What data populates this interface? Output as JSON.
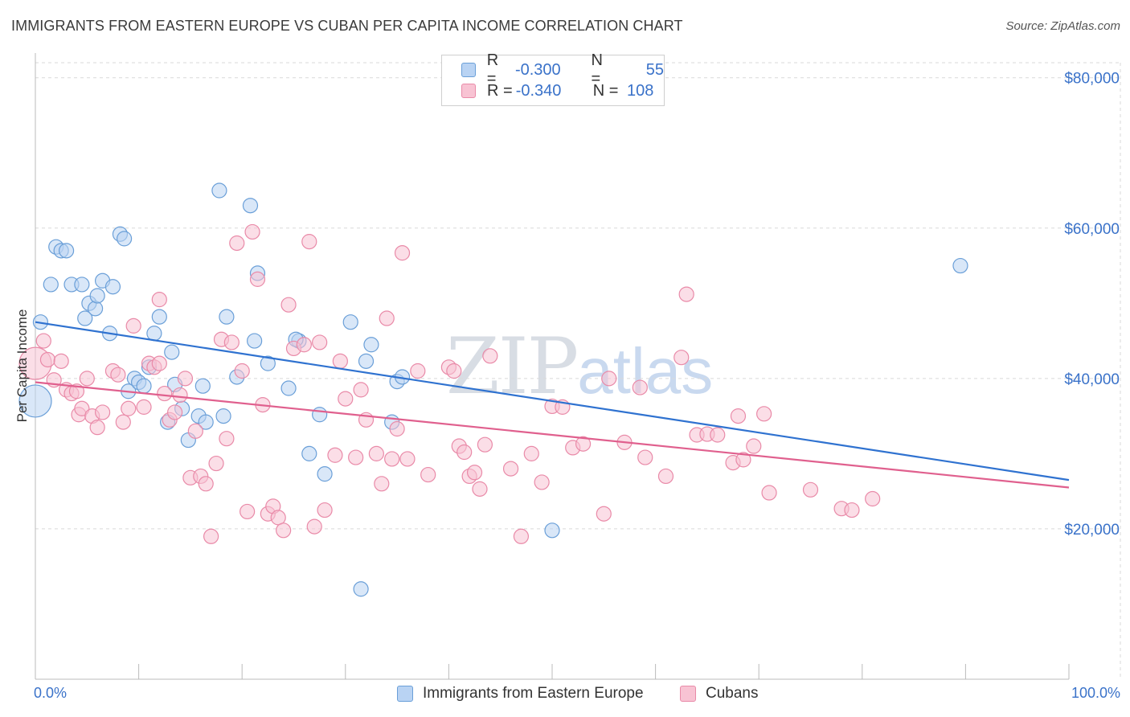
{
  "title": "IMMIGRANTS FROM EASTERN EUROPE VS CUBAN PER CAPITA INCOME CORRELATION CHART",
  "source": "Source: ZipAtlas.com",
  "watermark": {
    "zip": "ZIP",
    "atlas": "atlas"
  },
  "colors": {
    "blue_fill": "#b9d3f3",
    "blue_stroke": "#6a9fd8",
    "blue_line": "#2f72d0",
    "pink_fill": "#f8c3d3",
    "pink_stroke": "#e98aa8",
    "pink_line": "#e0608e",
    "accent_text": "#3a72c9",
    "grid": "#d9d9d9"
  },
  "legend_top": {
    "rows": [
      {
        "r_label": "R =",
        "r_value": "-0.300",
        "n_label": "N =",
        "n_value": "55"
      },
      {
        "r_label": "R =",
        "r_value": "-0.340",
        "n_label": "N =",
        "n_value": "108"
      }
    ]
  },
  "legend_bottom": [
    "Immigrants from Eastern Europe",
    "Cubans"
  ],
  "chart_data": {
    "type": "scatter",
    "title": "IMMIGRANTS FROM EASTERN EUROPE VS CUBAN PER CAPITA INCOME CORRELATION CHART",
    "xlabel": "",
    "ylabel": "Per Capita Income",
    "x_tick_labels": [
      "0.0%",
      "100.0%"
    ],
    "y_tick_labels": [
      "$20,000",
      "$40,000",
      "$60,000",
      "$80,000"
    ],
    "y_ticks": [
      20000,
      40000,
      60000,
      80000
    ],
    "xlim": [
      0,
      100
    ],
    "ylim": [
      0,
      82000
    ],
    "grid": true,
    "legend_position": "top-center",
    "series": [
      {
        "name": "Immigrants from Eastern Europe",
        "r": -0.3,
        "n": 55,
        "trend": {
          "x0": 0,
          "y0": 47500,
          "x1": 100,
          "y1": 26500
        },
        "points": [
          [
            0,
            37000
          ],
          [
            0.5,
            47500
          ],
          [
            1.5,
            52500
          ],
          [
            2,
            57500
          ],
          [
            2.5,
            57000
          ],
          [
            3,
            57000
          ],
          [
            3.5,
            52500
          ],
          [
            4.5,
            52500
          ],
          [
            4.8,
            48000
          ],
          [
            5.2,
            50000
          ],
          [
            5.8,
            49300
          ],
          [
            6,
            51000
          ],
          [
            6.5,
            53000
          ],
          [
            7.2,
            46000
          ],
          [
            7.5,
            52200
          ],
          [
            8.2,
            59200
          ],
          [
            8.6,
            58600
          ],
          [
            9,
            38300
          ],
          [
            9.6,
            40000
          ],
          [
            10,
            39500
          ],
          [
            10.5,
            39000
          ],
          [
            11,
            41500
          ],
          [
            11.5,
            46000
          ],
          [
            12,
            48200
          ],
          [
            12.8,
            34200
          ],
          [
            13.2,
            43500
          ],
          [
            13.5,
            39200
          ],
          [
            14.2,
            36000
          ],
          [
            14.8,
            31800
          ],
          [
            15.8,
            35000
          ],
          [
            16.2,
            39000
          ],
          [
            16.5,
            34200
          ],
          [
            17.8,
            65000
          ],
          [
            18.5,
            48200
          ],
          [
            18.2,
            35000
          ],
          [
            19.5,
            40200
          ],
          [
            20.8,
            63000
          ],
          [
            21.2,
            45000
          ],
          [
            21.5,
            54000
          ],
          [
            22.5,
            42000
          ],
          [
            24.5,
            38700
          ],
          [
            25.5,
            45000
          ],
          [
            26.5,
            30000
          ],
          [
            28,
            27300
          ],
          [
            27.5,
            35200
          ],
          [
            30.5,
            47500
          ],
          [
            31.5,
            12000
          ],
          [
            32,
            42300
          ],
          [
            32.5,
            44500
          ],
          [
            34.5,
            34200
          ],
          [
            35,
            39600
          ],
          [
            35.5,
            40200
          ],
          [
            50,
            19800
          ],
          [
            89.5,
            55000
          ],
          [
            25.2,
            45200
          ]
        ]
      },
      {
        "name": "Cubans",
        "r": -0.34,
        "n": 108,
        "trend": {
          "x0": 0,
          "y0": 39500,
          "x1": 100,
          "y1": 25500
        },
        "points": [
          [
            0,
            42000
          ],
          [
            0.8,
            45000
          ],
          [
            1.2,
            42500
          ],
          [
            1.8,
            39800
          ],
          [
            2.5,
            42300
          ],
          [
            3,
            38500
          ],
          [
            3.5,
            38000
          ],
          [
            4,
            38300
          ],
          [
            4.2,
            35200
          ],
          [
            4.5,
            36000
          ],
          [
            5,
            40000
          ],
          [
            5.5,
            35000
          ],
          [
            6,
            33500
          ],
          [
            6.5,
            35500
          ],
          [
            7.5,
            41000
          ],
          [
            8,
            40500
          ],
          [
            8.5,
            34200
          ],
          [
            9,
            36000
          ],
          [
            9.5,
            47000
          ],
          [
            10.5,
            36200
          ],
          [
            11,
            42000
          ],
          [
            11.5,
            41500
          ],
          [
            12,
            50500
          ],
          [
            12.5,
            38000
          ],
          [
            13,
            34500
          ],
          [
            13.5,
            35500
          ],
          [
            14,
            37800
          ],
          [
            14.5,
            40000
          ],
          [
            15.5,
            33000
          ],
          [
            15,
            26800
          ],
          [
            16,
            27000
          ],
          [
            16.5,
            26000
          ],
          [
            17,
            19000
          ],
          [
            17.5,
            28700
          ],
          [
            18,
            45200
          ],
          [
            18.5,
            32000
          ],
          [
            19,
            44800
          ],
          [
            19.5,
            58000
          ],
          [
            20,
            41000
          ],
          [
            20.5,
            22300
          ],
          [
            21,
            59500
          ],
          [
            21.5,
            53200
          ],
          [
            22,
            36500
          ],
          [
            22.5,
            22000
          ],
          [
            23,
            23000
          ],
          [
            23.5,
            21500
          ],
          [
            24,
            19800
          ],
          [
            24.5,
            49800
          ],
          [
            25,
            44000
          ],
          [
            26,
            44500
          ],
          [
            26.5,
            58200
          ],
          [
            27,
            20300
          ],
          [
            27.5,
            44800
          ],
          [
            28,
            22500
          ],
          [
            29,
            29800
          ],
          [
            29.5,
            42300
          ],
          [
            30,
            37300
          ],
          [
            31,
            29500
          ],
          [
            31.5,
            38500
          ],
          [
            32,
            34500
          ],
          [
            33,
            30000
          ],
          [
            33.5,
            26000
          ],
          [
            34,
            48000
          ],
          [
            34.5,
            29300
          ],
          [
            35,
            33300
          ],
          [
            35.5,
            56700
          ],
          [
            36,
            29300
          ],
          [
            37,
            41000
          ],
          [
            38,
            27200
          ],
          [
            40,
            41500
          ],
          [
            40.5,
            41000
          ],
          [
            41,
            31000
          ],
          [
            41.5,
            30200
          ],
          [
            42,
            27000
          ],
          [
            42.5,
            27500
          ],
          [
            43,
            25300
          ],
          [
            43.5,
            31200
          ],
          [
            44,
            43000
          ],
          [
            46,
            28000
          ],
          [
            47,
            19000
          ],
          [
            48,
            30000
          ],
          [
            49,
            26200
          ],
          [
            50,
            36300
          ],
          [
            51,
            36200
          ],
          [
            52,
            30800
          ],
          [
            53,
            31300
          ],
          [
            55,
            22000
          ],
          [
            57,
            31500
          ],
          [
            58.5,
            38800
          ],
          [
            61,
            27000
          ],
          [
            62.5,
            42800
          ],
          [
            63,
            51200
          ],
          [
            64,
            32500
          ],
          [
            65,
            32600
          ],
          [
            66,
            32500
          ],
          [
            67.5,
            28800
          ],
          [
            68,
            35000
          ],
          [
            68.5,
            29200
          ],
          [
            69.5,
            31000
          ],
          [
            70.5,
            35300
          ],
          [
            71,
            24800
          ],
          [
            75,
            25200
          ],
          [
            78,
            22700
          ],
          [
            79,
            22500
          ],
          [
            81,
            24000
          ],
          [
            55.5,
            40000
          ],
          [
            59,
            29500
          ],
          [
            12,
            42000
          ]
        ]
      }
    ]
  }
}
